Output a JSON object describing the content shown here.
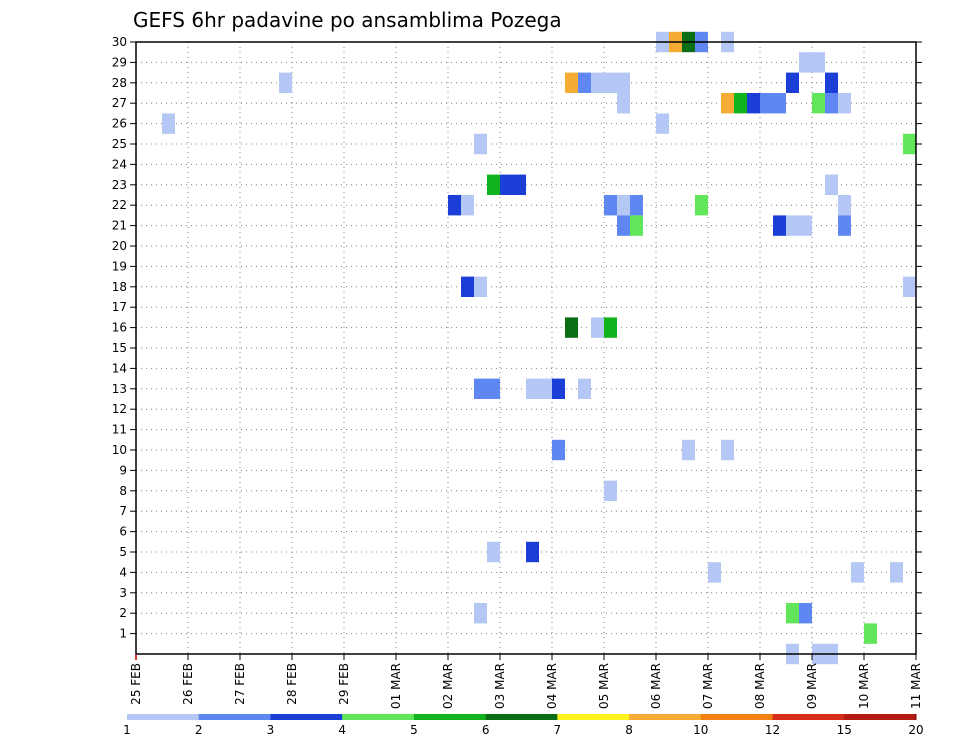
{
  "chart_data": {
    "type": "heatmap",
    "title": "GEFS 6hr padavine po ansamblima Pozega",
    "xlabel": "",
    "ylabel": "",
    "x_tick_labels": [
      "25 FEB",
      "26 FEB",
      "27 FEB",
      "28 FEB",
      "29 FEB",
      "01 MAR",
      "02 MAR",
      "03 MAR",
      "04 MAR",
      "05 MAR",
      "06 MAR",
      "07 MAR",
      "08 MAR",
      "09 MAR",
      "10 MAR",
      "11 MAR"
    ],
    "y_tick_labels": [
      "1",
      "2",
      "3",
      "4",
      "5",
      "6",
      "7",
      "8",
      "9",
      "10",
      "11",
      "12",
      "13",
      "14",
      "15",
      "16",
      "17",
      "18",
      "19",
      "20",
      "21",
      "22",
      "23",
      "24",
      "25",
      "26",
      "27",
      "28",
      "29",
      "30"
    ],
    "xlim_days": [
      0,
      15
    ],
    "ylim": [
      0,
      30
    ],
    "grid": true,
    "levels": [
      "1",
      "2",
      "3",
      "4",
      "5",
      "6",
      "7",
      "8",
      "10",
      "12",
      "15",
      "20"
    ],
    "level_colors": [
      "#b4c7f5",
      "#5f87f2",
      "#1b3fd6",
      "#61e65a",
      "#10b21d",
      "#0b6e15",
      "#fff21c",
      "#f6ac34",
      "#f1820f",
      "#d62d1a",
      "#b21a12",
      "#7a0a0c"
    ],
    "cells": [
      {
        "d": 0.5,
        "m": 26,
        "l": 1
      },
      {
        "d": 2.75,
        "m": 28,
        "l": 1
      },
      {
        "d": 6.0,
        "m": 22,
        "l": 3
      },
      {
        "d": 6.25,
        "m": 22,
        "l": 1
      },
      {
        "d": 6.25,
        "m": 18,
        "l": 3
      },
      {
        "d": 6.5,
        "m": 18,
        "l": 1
      },
      {
        "d": 6.5,
        "m": 25,
        "l": 1
      },
      {
        "d": 6.5,
        "m": 13,
        "l": 2
      },
      {
        "d": 6.75,
        "m": 13,
        "l": 2
      },
      {
        "d": 6.5,
        "m": 2,
        "l": 1
      },
      {
        "d": 6.75,
        "m": 5,
        "l": 1
      },
      {
        "d": 6.75,
        "m": 23,
        "l": 5
      },
      {
        "d": 7.0,
        "m": 23,
        "l": 3
      },
      {
        "d": 7.25,
        "m": 23,
        "l": 3
      },
      {
        "d": 7.5,
        "m": 5,
        "l": 3
      },
      {
        "d": 7.5,
        "m": 13,
        "l": 1
      },
      {
        "d": 7.75,
        "m": 13,
        "l": 1
      },
      {
        "d": 8.0,
        "m": 13,
        "l": 3
      },
      {
        "d": 8.0,
        "m": 10,
        "l": 2
      },
      {
        "d": 8.25,
        "m": 16,
        "l": 6
      },
      {
        "d": 8.25,
        "m": 28,
        "l": 8
      },
      {
        "d": 8.5,
        "m": 28,
        "l": 2
      },
      {
        "d": 8.5,
        "m": 13,
        "l": 1
      },
      {
        "d": 8.75,
        "m": 28,
        "l": 1
      },
      {
        "d": 8.75,
        "m": 16,
        "l": 1
      },
      {
        "d": 9.0,
        "m": 28,
        "l": 1
      },
      {
        "d": 9.0,
        "m": 22,
        "l": 2
      },
      {
        "d": 9.0,
        "m": 16,
        "l": 5
      },
      {
        "d": 9.0,
        "m": 8,
        "l": 1
      },
      {
        "d": 9.25,
        "m": 28,
        "l": 1
      },
      {
        "d": 9.25,
        "m": 27,
        "l": 1
      },
      {
        "d": 9.25,
        "m": 22,
        "l": 1
      },
      {
        "d": 9.25,
        "m": 21,
        "l": 2
      },
      {
        "d": 9.5,
        "m": 22,
        "l": 2
      },
      {
        "d": 9.5,
        "m": 21,
        "l": 4
      },
      {
        "d": 10.0,
        "m": 30,
        "l": 1
      },
      {
        "d": 10.0,
        "m": 26,
        "l": 1
      },
      {
        "d": 10.25,
        "m": 30,
        "l": 8
      },
      {
        "d": 10.5,
        "m": 30,
        "l": 6
      },
      {
        "d": 10.5,
        "m": 10,
        "l": 1
      },
      {
        "d": 10.75,
        "m": 30,
        "l": 2
      },
      {
        "d": 10.75,
        "m": 22,
        "l": 4
      },
      {
        "d": 11.0,
        "m": 4,
        "l": 1
      },
      {
        "d": 11.25,
        "m": 30,
        "l": 1
      },
      {
        "d": 11.25,
        "m": 27,
        "l": 8
      },
      {
        "d": 11.25,
        "m": 10,
        "l": 1
      },
      {
        "d": 11.5,
        "m": 27,
        "l": 5
      },
      {
        "d": 11.75,
        "m": 27,
        "l": 3
      },
      {
        "d": 12.0,
        "m": 27,
        "l": 2
      },
      {
        "d": 12.25,
        "m": 27,
        "l": 2
      },
      {
        "d": 12.25,
        "m": 21,
        "l": 3
      },
      {
        "d": 12.5,
        "m": 28,
        "l": 3
      },
      {
        "d": 12.5,
        "m": 21,
        "l": 1
      },
      {
        "d": 12.5,
        "m": 2,
        "l": 4
      },
      {
        "d": 12.5,
        "m": 0,
        "l": 1
      },
      {
        "d": 12.75,
        "m": 29,
        "l": 1
      },
      {
        "d": 12.75,
        "m": 21,
        "l": 1
      },
      {
        "d": 12.75,
        "m": 2,
        "l": 2
      },
      {
        "d": 13.0,
        "m": 29,
        "l": 1
      },
      {
        "d": 13.0,
        "m": 27,
        "l": 4
      },
      {
        "d": 13.0,
        "m": 0,
        "l": 1
      },
      {
        "d": 13.25,
        "m": 28,
        "l": 3
      },
      {
        "d": 13.25,
        "m": 27,
        "l": 2
      },
      {
        "d": 13.25,
        "m": 23,
        "l": 1
      },
      {
        "d": 13.25,
        "m": 0,
        "l": 1
      },
      {
        "d": 13.5,
        "m": 27,
        "l": 1
      },
      {
        "d": 13.5,
        "m": 22,
        "l": 1
      },
      {
        "d": 13.5,
        "m": 21,
        "l": 2
      },
      {
        "d": 13.75,
        "m": 4,
        "l": 1
      },
      {
        "d": 14.0,
        "m": 1,
        "l": 4
      },
      {
        "d": 14.5,
        "m": 4,
        "l": 1
      },
      {
        "d": 14.75,
        "m": 25,
        "l": 4
      },
      {
        "d": 14.75,
        "m": 18,
        "l": 1
      }
    ]
  }
}
